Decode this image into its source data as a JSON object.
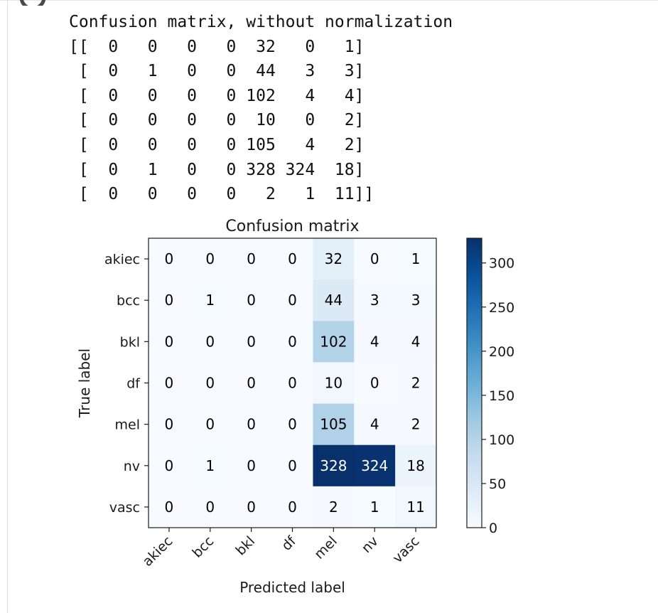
{
  "output": {
    "heading": "Confusion matrix, without normalization",
    "matrix_lines": [
      "[[  0   0   0   0  32   0   1]",
      " [  0   1   0   0  44   3   3]",
      " [  0   0   0   0 102   4   4]",
      " [  0   0   0   0  10   0   2]",
      " [  0   0   0   0 105   4   2]",
      " [  0   1   0   0 328 324  18]",
      " [  0   0   0   0   2   1  11]]"
    ]
  },
  "chart_data": {
    "type": "heatmap",
    "title": "Confusion matrix",
    "xlabel": "Predicted label",
    "ylabel": "True label",
    "x_categories": [
      "akiec",
      "bcc",
      "bkl",
      "df",
      "mel",
      "nv",
      "vasc"
    ],
    "y_categories": [
      "akiec",
      "bcc",
      "bkl",
      "df",
      "mel",
      "nv",
      "vasc"
    ],
    "values": [
      [
        0,
        0,
        0,
        0,
        32,
        0,
        1
      ],
      [
        0,
        1,
        0,
        0,
        44,
        3,
        3
      ],
      [
        0,
        0,
        0,
        0,
        102,
        4,
        4
      ],
      [
        0,
        0,
        0,
        0,
        10,
        0,
        2
      ],
      [
        0,
        0,
        0,
        0,
        105,
        4,
        2
      ],
      [
        0,
        1,
        0,
        0,
        328,
        324,
        18
      ],
      [
        0,
        0,
        0,
        0,
        2,
        1,
        11
      ]
    ],
    "colormap": "Blues",
    "color_range": [
      0,
      328
    ],
    "colorbar_ticks": [
      0,
      50,
      100,
      150,
      200,
      250,
      300
    ],
    "text_color_light": "#ffffff",
    "text_color_dark": "#000000",
    "x_tick_rotation": 45
  }
}
